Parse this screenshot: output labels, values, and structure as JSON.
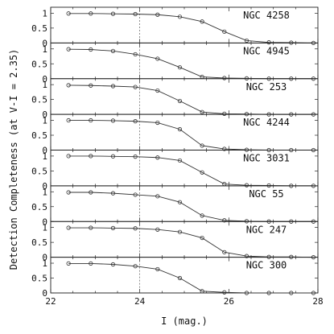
{
  "chart_data": {
    "type": "line",
    "xlabel": "I (mag.)",
    "ylabel": "Detection Completeness (at V-I = 2.35)",
    "xlim": [
      22,
      28
    ],
    "ylim": [
      0,
      1.2
    ],
    "x_ticks": [
      "22",
      "24",
      "26",
      "28"
    ],
    "y_ticks": [
      "0",
      "0.5",
      "1"
    ],
    "x": [
      22.4,
      22.9,
      23.4,
      23.9,
      24.4,
      24.9,
      25.4,
      25.9,
      26.4,
      26.9,
      27.4,
      27.9
    ],
    "panels": [
      {
        "name": "NGC 4258",
        "values": [
          0.99,
          0.99,
          0.98,
          0.97,
          0.95,
          0.88,
          0.72,
          0.38,
          0.08,
          0.02,
          0.01,
          0.0
        ]
      },
      {
        "name": "NGC 4945",
        "values": [
          0.99,
          0.98,
          0.93,
          0.82,
          0.67,
          0.38,
          0.06,
          0.02,
          0.01,
          0.0,
          0.0,
          0.0
        ]
      },
      {
        "name": "NGC 253",
        "values": [
          0.98,
          0.97,
          0.95,
          0.92,
          0.8,
          0.45,
          0.08,
          0.02,
          0.01,
          0.0,
          0.0,
          0.0
        ]
      },
      {
        "name": "NGC 4244",
        "values": [
          1.0,
          1.0,
          0.99,
          0.97,
          0.92,
          0.7,
          0.15,
          0.04,
          0.01,
          0.0,
          0.0,
          0.0
        ]
      },
      {
        "name": "NGC 3031",
        "values": [
          1.0,
          1.0,
          0.99,
          0.98,
          0.95,
          0.85,
          0.45,
          0.06,
          0.02,
          0.01,
          0.0,
          0.0
        ]
      },
      {
        "name": "NGC 55",
        "values": [
          0.98,
          0.98,
          0.95,
          0.9,
          0.85,
          0.65,
          0.2,
          0.04,
          0.01,
          0.0,
          0.0,
          0.0
        ]
      },
      {
        "name": "NGC 247",
        "values": [
          0.99,
          0.99,
          0.98,
          0.97,
          0.93,
          0.85,
          0.65,
          0.17,
          0.04,
          0.01,
          0.01,
          0.0
        ]
      },
      {
        "name": "NGC 300",
        "values": [
          0.99,
          0.99,
          0.96,
          0.9,
          0.8,
          0.5,
          0.06,
          0.02,
          0.0,
          0.0,
          0.0,
          0.0
        ]
      }
    ]
  }
}
